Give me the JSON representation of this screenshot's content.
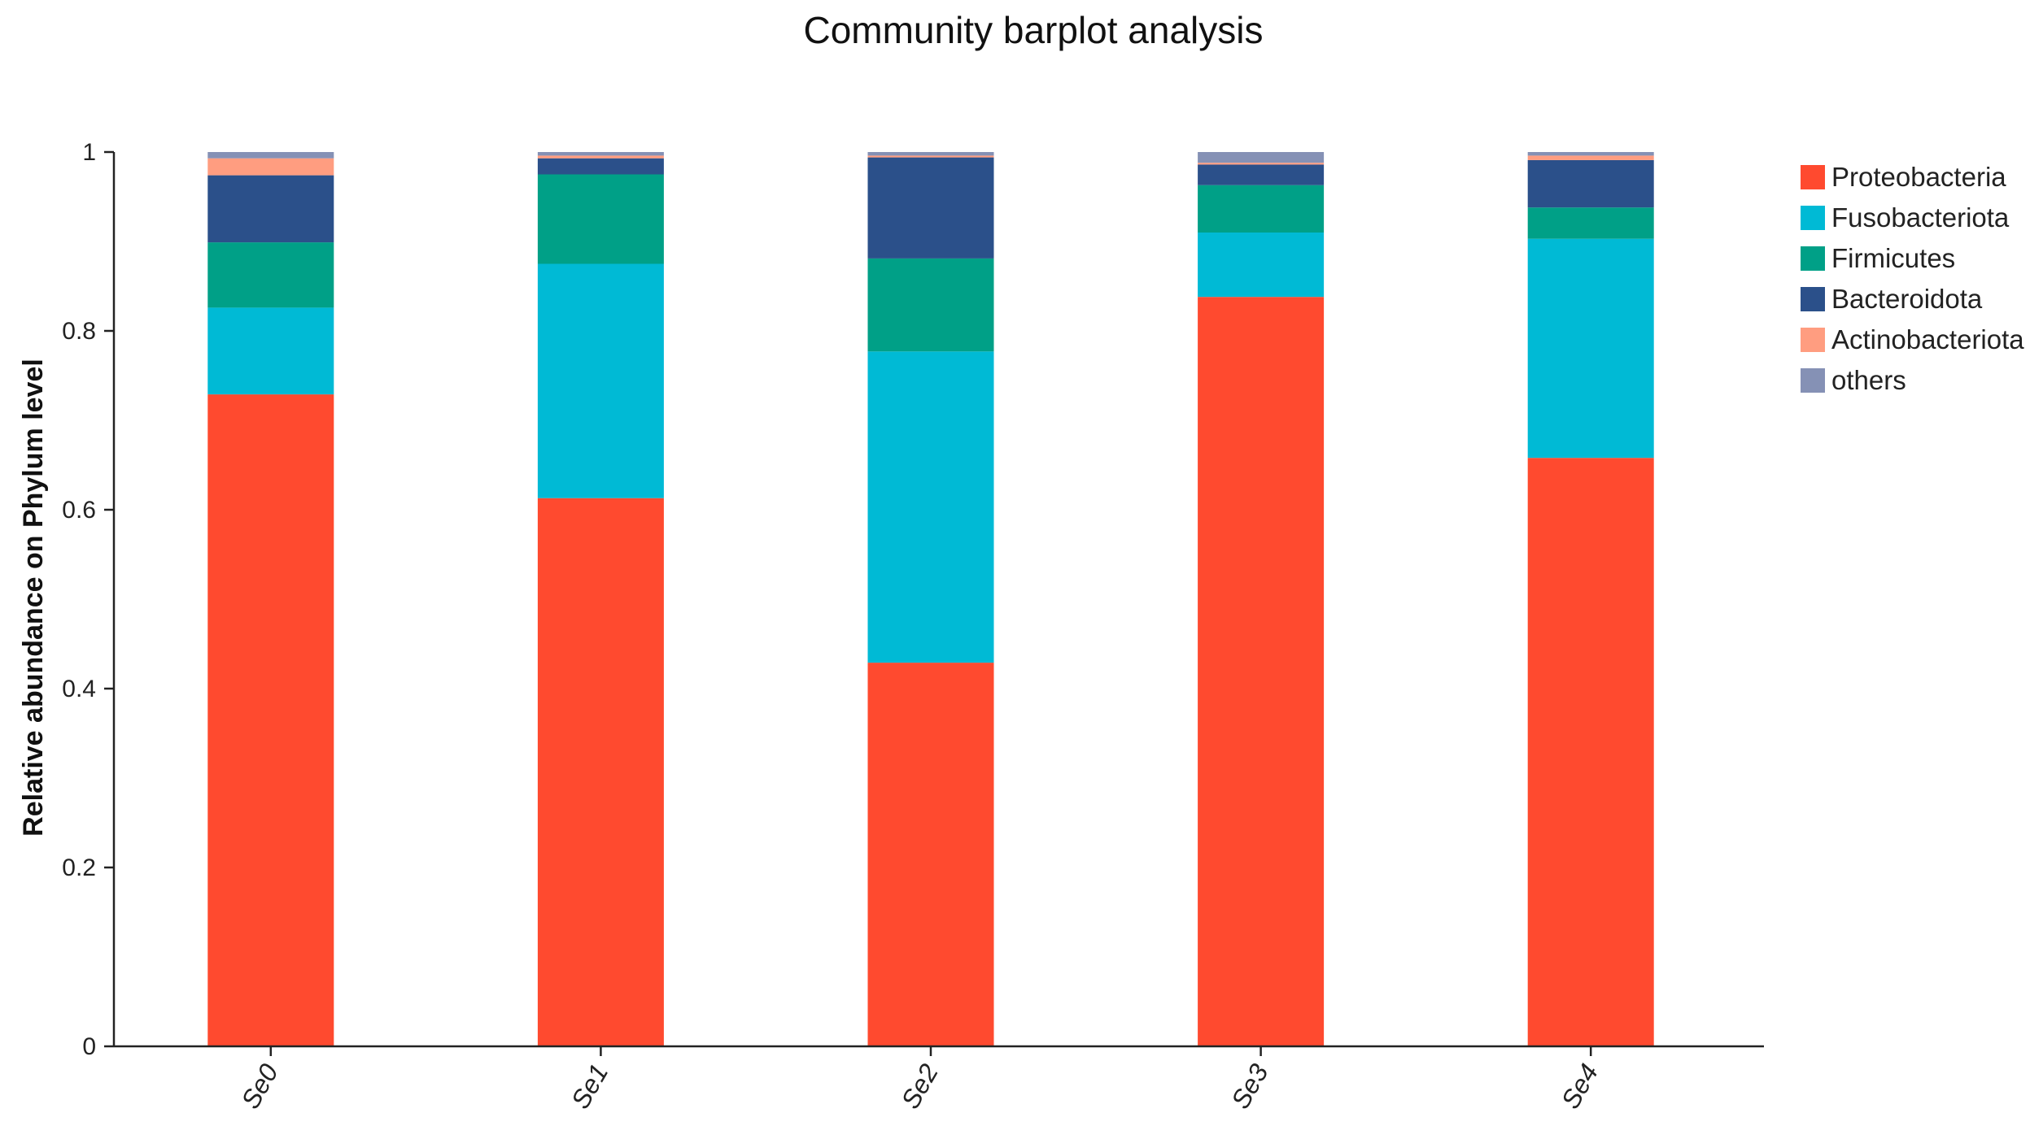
{
  "chart_data": {
    "type": "bar",
    "stacked": true,
    "title": "Community barplot analysis",
    "xlabel": "",
    "ylabel": "Relative abundance on Phylum level",
    "ylim": [
      0,
      1
    ],
    "yticks": [
      "0",
      "0.2",
      "0.4",
      "0.6",
      "0.8",
      "1"
    ],
    "categories": [
      "Se0",
      "Se1",
      "Se2",
      "Se3",
      "Se4"
    ],
    "grid": false,
    "legend_position": "right",
    "series": [
      {
        "name": "Proteobacteria",
        "color": "#FF4A2F",
        "values": [
          0.729,
          0.613,
          0.429,
          0.838,
          0.658
        ]
      },
      {
        "name": "Fusobacteriota",
        "color": "#00BAD5",
        "values": [
          0.097,
          0.262,
          0.348,
          0.072,
          0.245
        ]
      },
      {
        "name": "Firmicutes",
        "color": "#00A087",
        "values": [
          0.073,
          0.1,
          0.104,
          0.053,
          0.035
        ]
      },
      {
        "name": "Bacteroidota",
        "color": "#2B508A",
        "values": [
          0.075,
          0.018,
          0.113,
          0.023,
          0.053
        ]
      },
      {
        "name": "Actinobacteriota",
        "color": "#FF9D80",
        "values": [
          0.019,
          0.003,
          0.002,
          0.002,
          0.005
        ]
      },
      {
        "name": "others",
        "color": "#8591B5",
        "values": [
          0.007,
          0.004,
          0.004,
          0.012,
          0.004
        ]
      }
    ]
  }
}
